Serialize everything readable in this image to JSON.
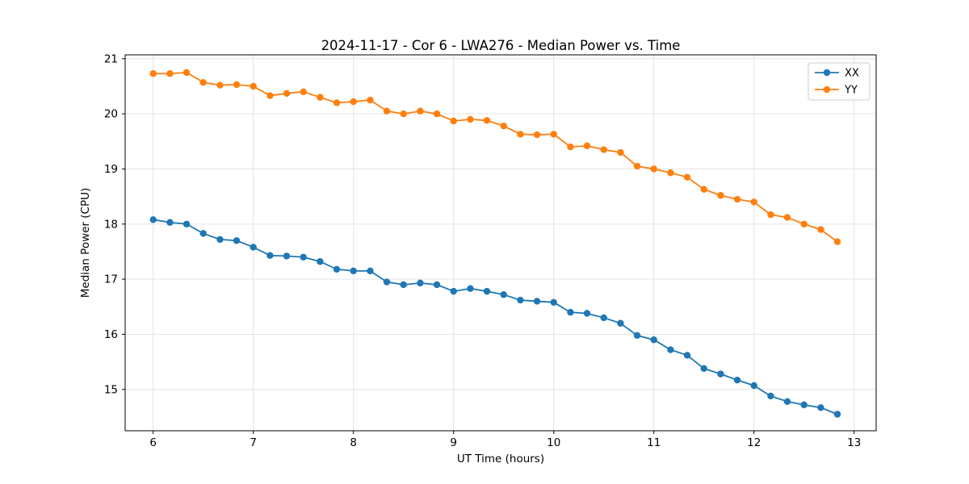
{
  "figure": {
    "title": "2024-11-17 - Cor 6 - LWA276 - Median Power vs. Time",
    "xlabel": "UT Time (hours)",
    "ylabel": "Median Power (CPU)"
  },
  "chart_data": {
    "type": "line",
    "title": "2024-11-17 - Cor 6 - LWA276 - Median Power vs. Time",
    "xlabel": "UT Time (hours)",
    "ylabel": "Median Power (CPU)",
    "xlim": [
      5.72,
      13.22
    ],
    "ylim": [
      14.25,
      21.07
    ],
    "xticks": [
      6,
      7,
      8,
      9,
      10,
      11,
      12,
      13
    ],
    "yticks": [
      15,
      16,
      17,
      18,
      19,
      20,
      21
    ],
    "grid": true,
    "legend_position": "upper right",
    "marker": "circle",
    "x": [
      6.0,
      6.167,
      6.333,
      6.5,
      6.667,
      6.833,
      7.0,
      7.167,
      7.333,
      7.5,
      7.667,
      7.833,
      8.0,
      8.167,
      8.333,
      8.5,
      8.667,
      8.833,
      9.0,
      9.167,
      9.333,
      9.5,
      9.667,
      9.833,
      10.0,
      10.167,
      10.333,
      10.5,
      10.667,
      10.833,
      11.0,
      11.167,
      11.333,
      11.5,
      11.667,
      11.833,
      12.0,
      12.167,
      12.333,
      12.5,
      12.667,
      12.833
    ],
    "series": [
      {
        "name": "XX",
        "color": "#1f77b4",
        "values": [
          18.08,
          18.03,
          18.0,
          17.83,
          17.72,
          17.7,
          17.58,
          17.43,
          17.42,
          17.4,
          17.32,
          17.18,
          17.15,
          17.15,
          16.95,
          16.9,
          16.93,
          16.9,
          16.78,
          16.83,
          16.78,
          16.72,
          16.62,
          16.6,
          16.58,
          16.4,
          16.38,
          16.3,
          16.2,
          15.98,
          15.9,
          15.72,
          15.62,
          15.38,
          15.28,
          15.17,
          15.07,
          14.88,
          14.78,
          14.72,
          14.67,
          14.55
        ]
      },
      {
        "name": "YY",
        "color": "#ff7f0e",
        "values": [
          20.73,
          20.73,
          20.75,
          20.57,
          20.52,
          20.53,
          20.5,
          20.33,
          20.37,
          20.4,
          20.3,
          20.2,
          20.22,
          20.25,
          20.05,
          20.0,
          20.05,
          20.0,
          19.87,
          19.9,
          19.88,
          19.78,
          19.63,
          19.62,
          19.63,
          19.4,
          19.42,
          19.35,
          19.3,
          19.05,
          19.0,
          18.93,
          18.85,
          18.63,
          18.52,
          18.45,
          18.4,
          18.17,
          18.12,
          18.0,
          17.9,
          17.68
        ]
      }
    ]
  }
}
